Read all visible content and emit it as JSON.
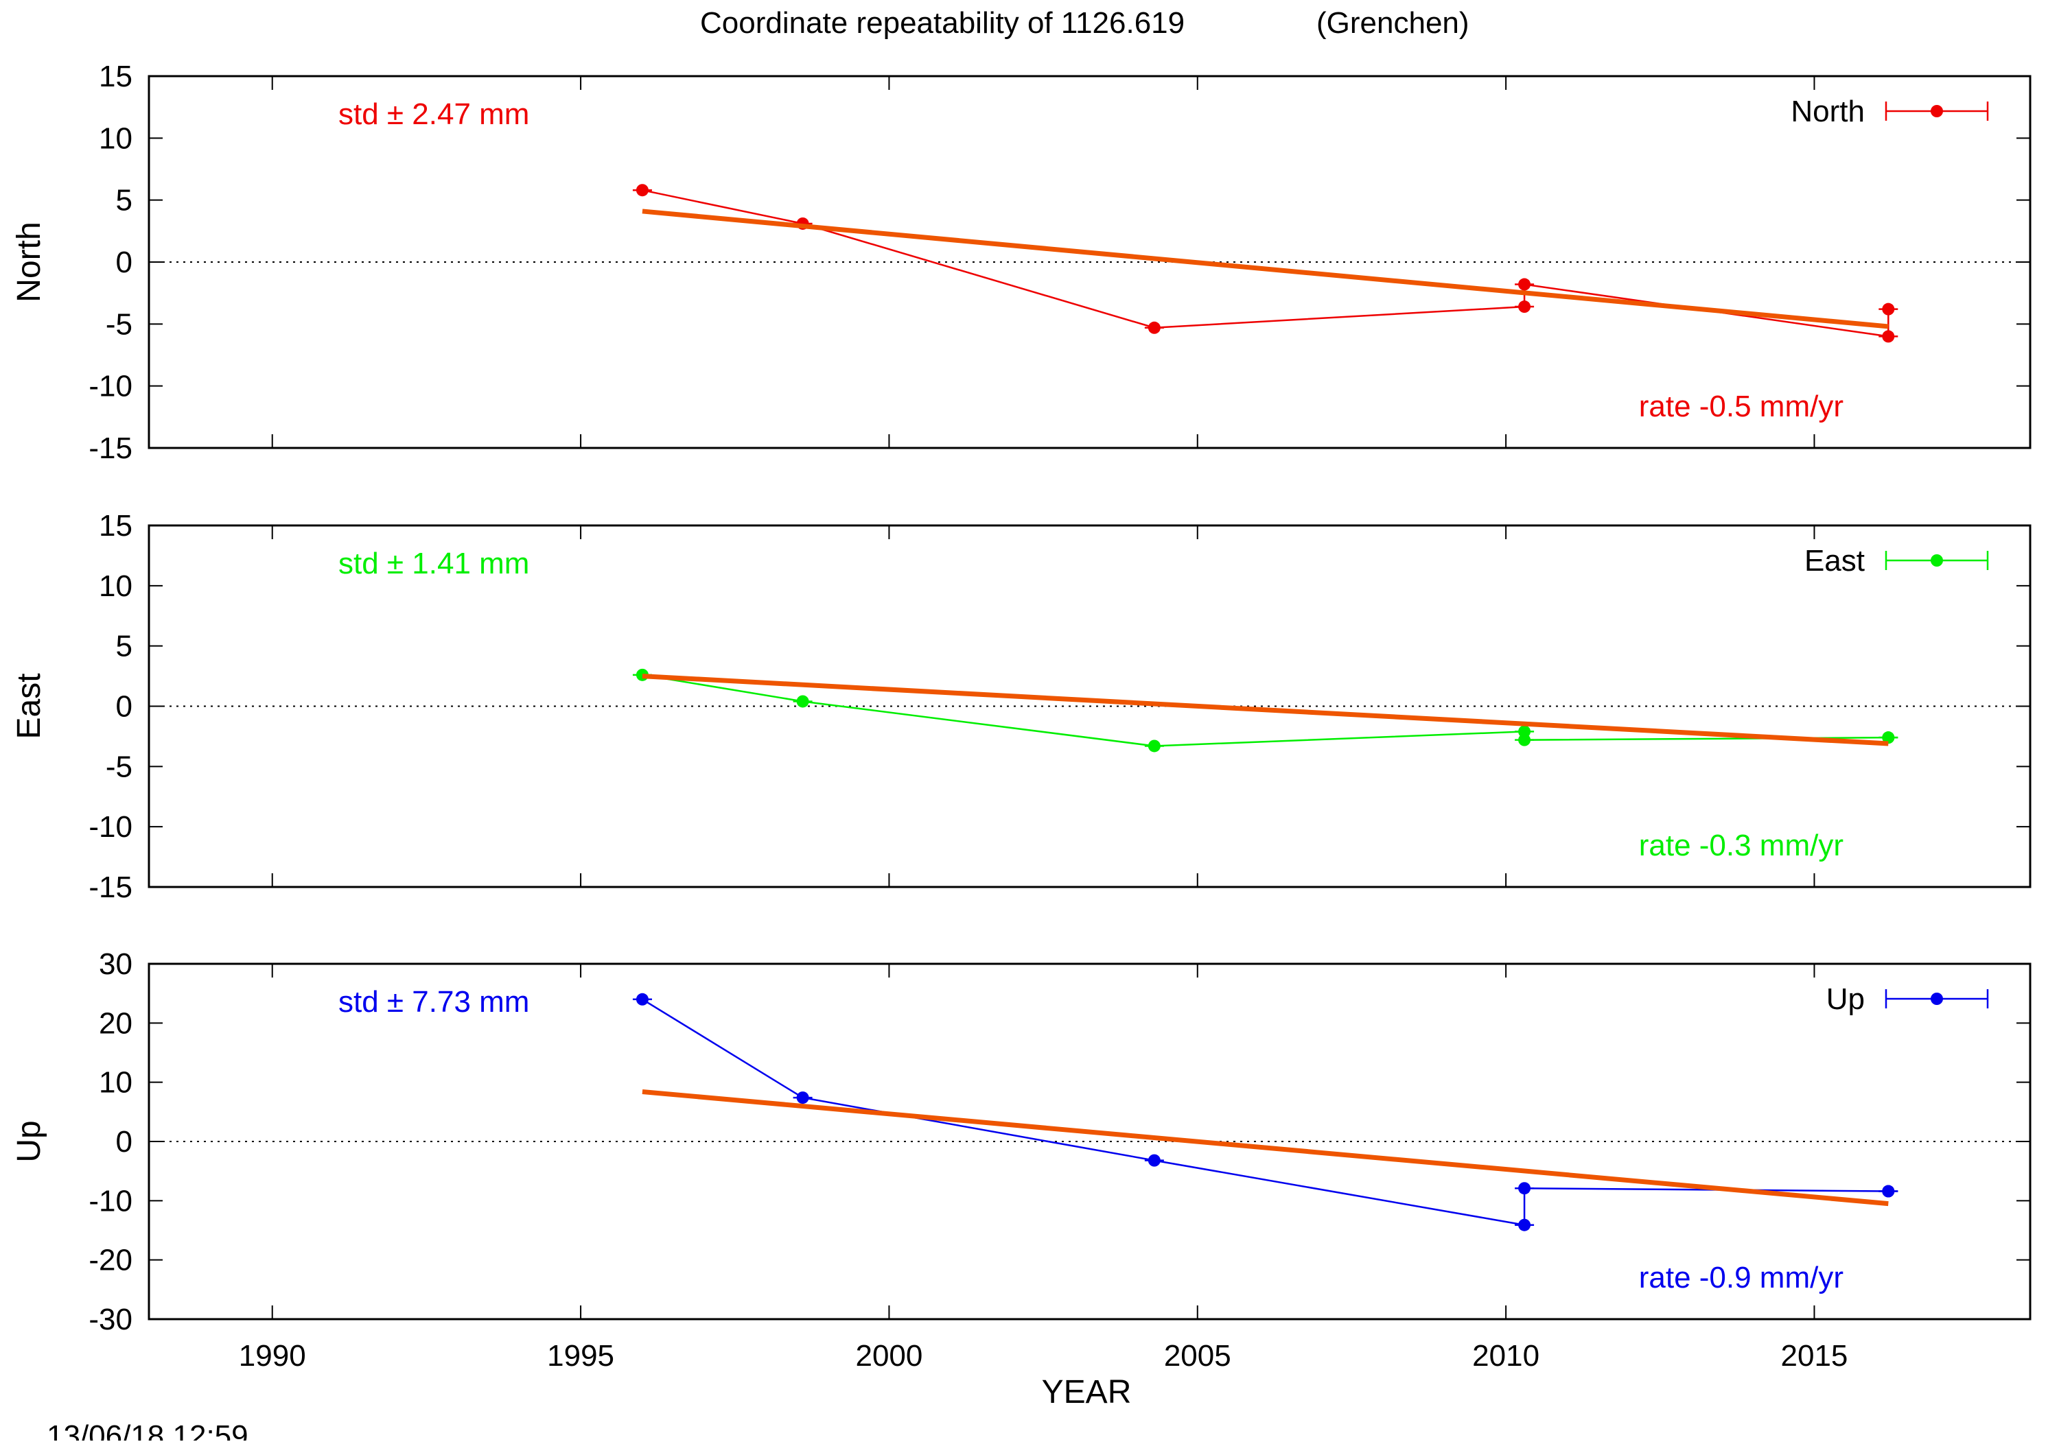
{
  "title": "Coordinate repeatability of 1126.619",
  "subtitle": "(Grenchen)",
  "xlabel": "YEAR",
  "timestamp": "13/06/18 12:59",
  "trend_color": "#ee5500",
  "chart_data": [
    {
      "type": "line",
      "ylabel": "North",
      "legend": "North",
      "color": "#ee0000",
      "std_label": "std ± 2.47 mm",
      "rate_label": "rate -0.5 mm/yr",
      "xlim": [
        1988,
        2018.5
      ],
      "ylim": [
        -15,
        15
      ],
      "yticks": [
        15,
        10,
        5,
        0,
        -5,
        -10,
        -15
      ],
      "xticks": [
        1990,
        1995,
        2000,
        2005,
        2010,
        2015
      ],
      "grid": false,
      "legend_position": "top-right",
      "series": [
        {
          "x": [
            1996.0,
            1998.6,
            2004.3,
            2010.3,
            2010.3,
            2016.2,
            2016.2
          ],
          "y": [
            5.8,
            3.1,
            -5.3,
            -3.6,
            -1.8,
            -6.0,
            -3.8
          ]
        }
      ],
      "trend": {
        "x": [
          1996.0,
          2016.2
        ],
        "y": [
          4.1,
          -5.2
        ]
      }
    },
    {
      "type": "line",
      "ylabel": "East",
      "legend": "East",
      "color": "#00ee00",
      "std_label": "std ± 1.41 mm",
      "rate_label": "rate -0.3 mm/yr",
      "xlim": [
        1988,
        2018.5
      ],
      "ylim": [
        -15,
        15
      ],
      "yticks": [
        15,
        10,
        5,
        0,
        -5,
        -10,
        -15
      ],
      "xticks": [
        1990,
        1995,
        2000,
        2005,
        2010,
        2015
      ],
      "grid": false,
      "legend_position": "top-right",
      "series": [
        {
          "x": [
            1996.0,
            1998.6,
            2004.3,
            2010.3,
            2010.3,
            2016.2,
            2016.2
          ],
          "y": [
            2.6,
            0.4,
            -3.3,
            -2.1,
            -2.8,
            -2.6,
            -2.6
          ]
        }
      ],
      "trend": {
        "x": [
          1996.0,
          2016.2
        ],
        "y": [
          2.5,
          -3.1
        ]
      }
    },
    {
      "type": "line",
      "ylabel": "Up",
      "legend": "Up",
      "color": "#0000ee",
      "std_label": "std ± 7.73 mm",
      "rate_label": "rate -0.9 mm/yr",
      "xlim": [
        1988,
        2018.5
      ],
      "ylim": [
        -30,
        30
      ],
      "yticks": [
        30,
        20,
        10,
        0,
        -10,
        -20,
        -30
      ],
      "xticks": [
        1990,
        1995,
        2000,
        2005,
        2010,
        2015
      ],
      "grid": false,
      "legend_position": "top-right",
      "series": [
        {
          "x": [
            1996.0,
            1998.6,
            2004.3,
            2010.3,
            2010.3,
            2016.2,
            2016.2
          ],
          "y": [
            24.0,
            7.4,
            -3.2,
            -14.1,
            -7.9,
            -8.4,
            -8.4
          ]
        }
      ],
      "trend": {
        "x": [
          1996.0,
          2016.2
        ],
        "y": [
          8.4,
          -10.5
        ]
      }
    }
  ]
}
